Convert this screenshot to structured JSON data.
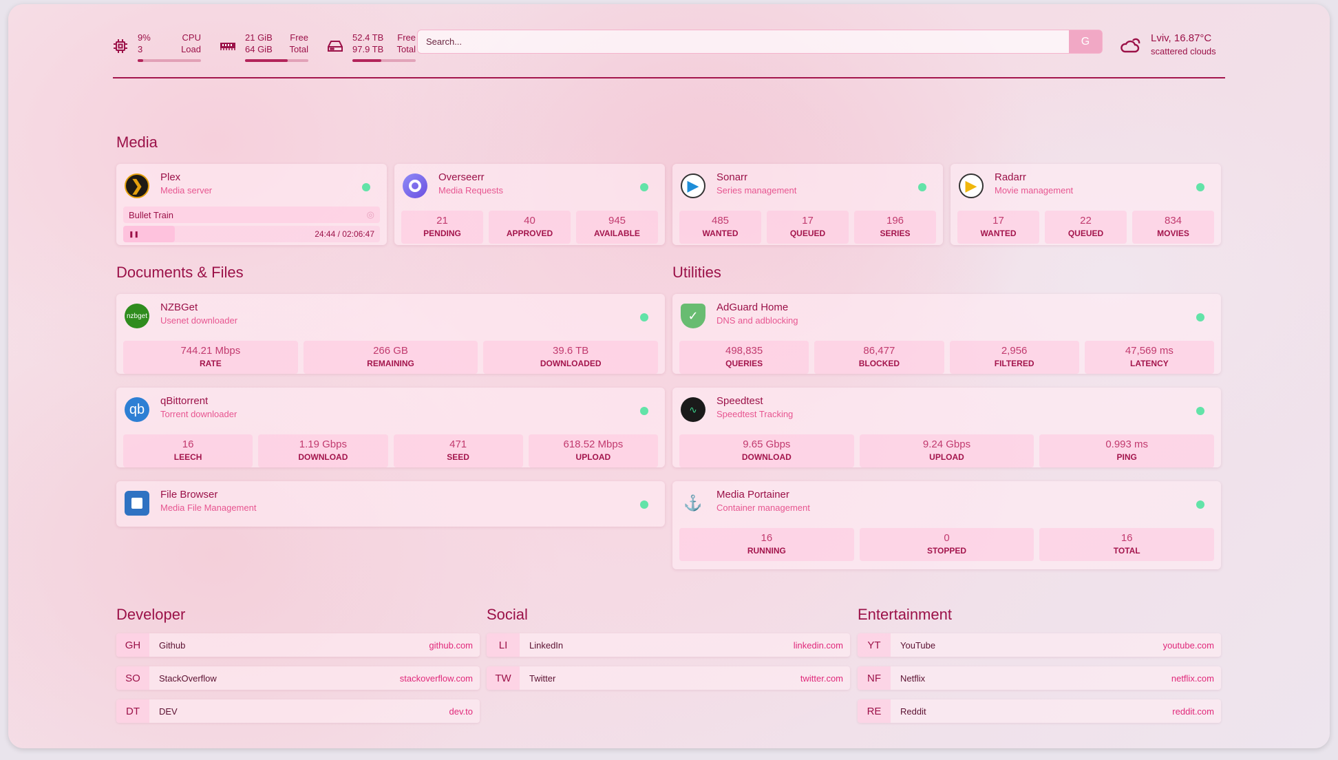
{
  "header": {
    "cpu": {
      "value": "9%",
      "label": "CPU",
      "sub_value": "3",
      "sub_label": "Load",
      "percent": 9
    },
    "memory": {
      "value": "21 GiB",
      "label": "Free",
      "sub_value": "64 GiB",
      "sub_label": "Total",
      "percent": 67
    },
    "disk": {
      "value": "52.4 TB",
      "label": "Free",
      "sub_value": "97.9 TB",
      "sub_label": "Total",
      "percent": 46
    },
    "search": {
      "placeholder": "Search...",
      "button": "G"
    },
    "weather": {
      "location_temp": "Lviv, 16.87°C",
      "condition": "scattered clouds"
    }
  },
  "colors": {
    "accent": "#9b1148",
    "subtitle": "#e75590",
    "status_ok": "#62e3a8"
  },
  "sections": {
    "media": "Media",
    "documents": "Documents & Files",
    "utilities": "Utilities",
    "developer": "Developer",
    "social": "Social",
    "entertainment": "Entertainment"
  },
  "media": [
    {
      "name": "Plex",
      "desc": "Media server",
      "icon": "plex-icon",
      "now_playing": {
        "title": "Bullet Train",
        "time": "24:44 / 02:06:47",
        "progress": 20
      }
    },
    {
      "name": "Overseerr",
      "desc": "Media Requests",
      "icon": "overseerr-icon",
      "stats": [
        {
          "v": "21",
          "l": "PENDING"
        },
        {
          "v": "40",
          "l": "APPROVED"
        },
        {
          "v": "945",
          "l": "AVAILABLE"
        }
      ]
    },
    {
      "name": "Sonarr",
      "desc": "Series management",
      "icon": "sonarr-icon",
      "stats": [
        {
          "v": "485",
          "l": "WANTED"
        },
        {
          "v": "17",
          "l": "QUEUED"
        },
        {
          "v": "196",
          "l": "SERIES"
        }
      ]
    },
    {
      "name": "Radarr",
      "desc": "Movie management",
      "icon": "radarr-icon",
      "stats": [
        {
          "v": "17",
          "l": "WANTED"
        },
        {
          "v": "22",
          "l": "QUEUED"
        },
        {
          "v": "834",
          "l": "MOVIES"
        }
      ]
    }
  ],
  "documents": [
    {
      "name": "NZBGet",
      "desc": "Usenet downloader",
      "icon": "nzbget-icon",
      "icon_text": "nzbget",
      "stats": [
        {
          "v": "744.21 Mbps",
          "l": "RATE"
        },
        {
          "v": "266 GB",
          "l": "REMAINING"
        },
        {
          "v": "39.6 TB",
          "l": "DOWNLOADED"
        }
      ]
    },
    {
      "name": "qBittorrent",
      "desc": "Torrent downloader",
      "icon": "qbittorrent-icon",
      "icon_text": "qb",
      "stats": [
        {
          "v": "16",
          "l": "LEECH"
        },
        {
          "v": "1.19 Gbps",
          "l": "DOWNLOAD"
        },
        {
          "v": "471",
          "l": "SEED"
        },
        {
          "v": "618.52 Mbps",
          "l": "UPLOAD"
        }
      ]
    },
    {
      "name": "File Browser",
      "desc": "Media File Management",
      "icon": "file-browser-icon",
      "stats": []
    }
  ],
  "utilities": [
    {
      "name": "AdGuard Home",
      "desc": "DNS and adblocking",
      "icon": "adguard-icon",
      "stats": [
        {
          "v": "498,835",
          "l": "QUERIES"
        },
        {
          "v": "86,477",
          "l": "BLOCKED"
        },
        {
          "v": "2,956",
          "l": "FILTERED"
        },
        {
          "v": "47,569 ms",
          "l": "LATENCY"
        }
      ]
    },
    {
      "name": "Speedtest",
      "desc": "Speedtest Tracking",
      "icon": "speedtest-icon",
      "stats": [
        {
          "v": "9.65 Gbps",
          "l": "DOWNLOAD"
        },
        {
          "v": "9.24 Gbps",
          "l": "UPLOAD"
        },
        {
          "v": "0.993 ms",
          "l": "PING"
        }
      ]
    },
    {
      "name": "Media Portainer",
      "desc": "Container management",
      "icon": "portainer-icon",
      "stats": [
        {
          "v": "16",
          "l": "RUNNING"
        },
        {
          "v": "0",
          "l": "STOPPED"
        },
        {
          "v": "16",
          "l": "TOTAL"
        }
      ]
    }
  ],
  "bookmarks": {
    "developer": [
      {
        "abbr": "GH",
        "name": "Github",
        "url": "github.com"
      },
      {
        "abbr": "SO",
        "name": "StackOverflow",
        "url": "stackoverflow.com"
      },
      {
        "abbr": "DT",
        "name": "DEV",
        "url": "dev.to"
      }
    ],
    "social": [
      {
        "abbr": "LI",
        "name": "LinkedIn",
        "url": "linkedin.com"
      },
      {
        "abbr": "TW",
        "name": "Twitter",
        "url": "twitter.com"
      }
    ],
    "entertainment": [
      {
        "abbr": "YT",
        "name": "YouTube",
        "url": "youtube.com"
      },
      {
        "abbr": "NF",
        "name": "Netflix",
        "url": "netflix.com"
      },
      {
        "abbr": "RE",
        "name": "Reddit",
        "url": "reddit.com"
      }
    ]
  }
}
